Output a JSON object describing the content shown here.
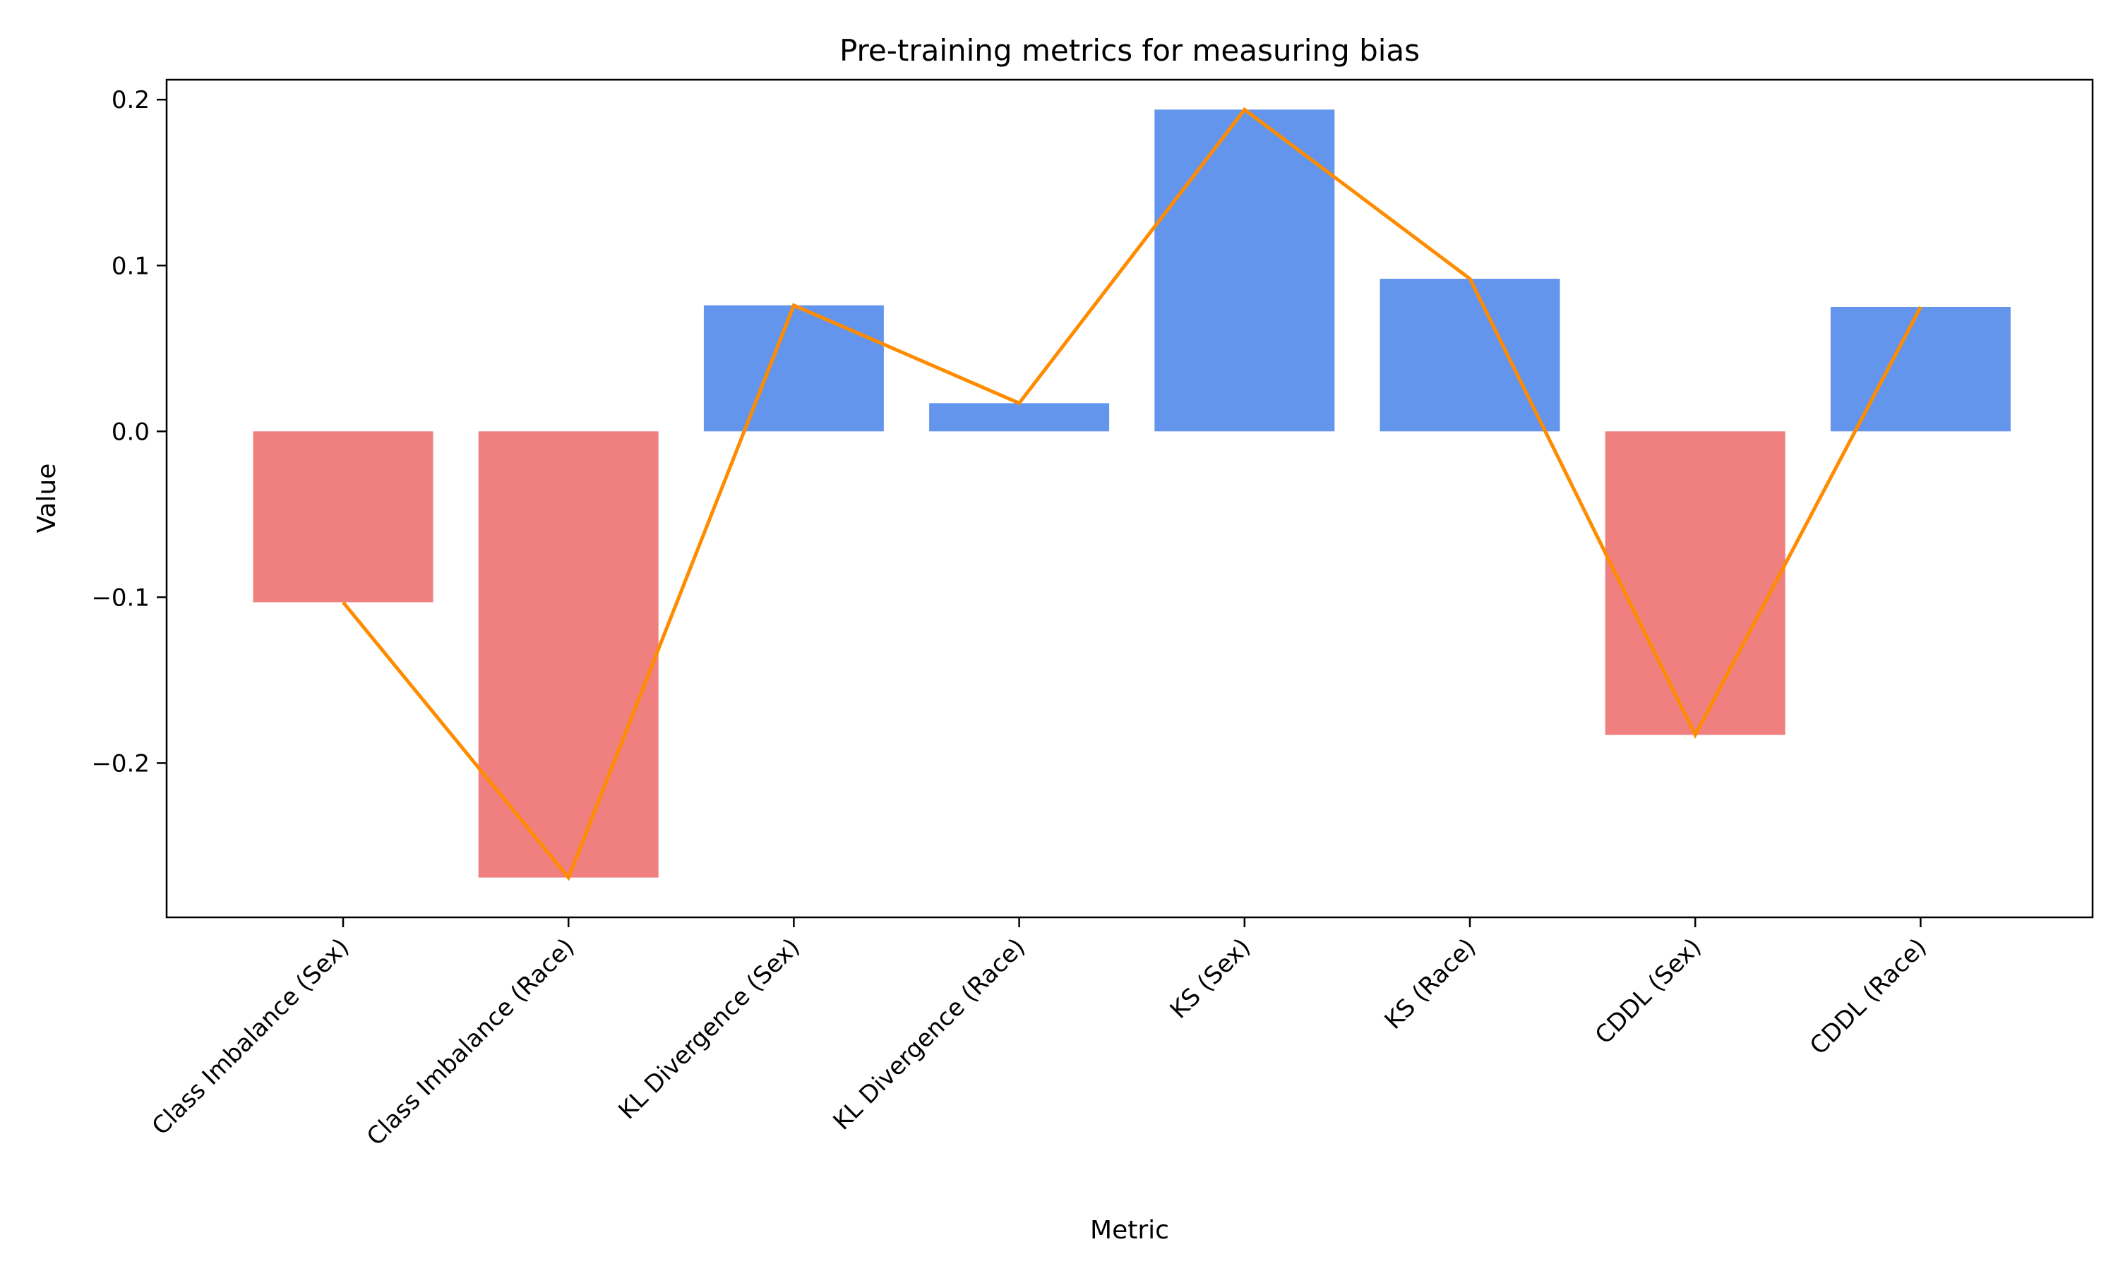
{
  "chart_data": {
    "type": "bar",
    "title": "Pre-training metrics for measuring bias",
    "xlabel": "Metric",
    "ylabel": "Value",
    "categories": [
      "Class Imbalance (Sex)",
      "Class Imbalance (Race)",
      "KL Divergence (Sex)",
      "KL Divergence (Race)",
      "KS (Sex)",
      "KS (Race)",
      "CDDL (Sex)",
      "CDDL (Race)"
    ],
    "values": [
      -0.103,
      -0.269,
      0.076,
      0.017,
      0.194,
      0.092,
      -0.183,
      0.075
    ],
    "line_overlay": {
      "values": [
        -0.103,
        -0.269,
        0.076,
        0.017,
        0.194,
        0.092,
        -0.183,
        0.075
      ],
      "color": "#ff8c00"
    },
    "ylim": [
      -0.293,
      0.212
    ],
    "yticks": [
      0.2,
      0.1,
      0.0,
      -0.1,
      -0.2
    ],
    "ytick_labels": [
      "0.2",
      "0.1",
      "0.0",
      "−0.1",
      "−0.2"
    ],
    "grid": false,
    "colors": {
      "positive": "#6495ed",
      "negative": "#f08080",
      "line": "#ff8c00"
    }
  }
}
